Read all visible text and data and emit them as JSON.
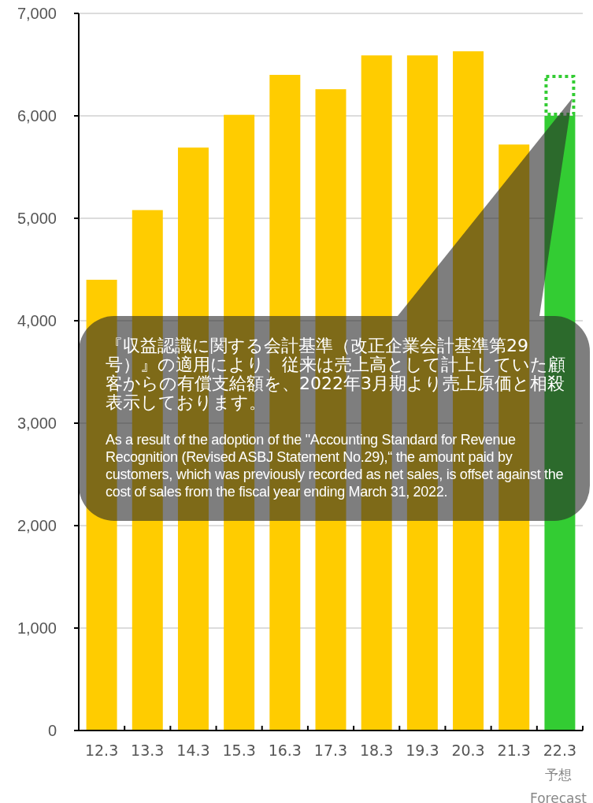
{
  "chart_data": {
    "type": "bar",
    "stacked": true,
    "grid": "y",
    "categories": [
      "12.3",
      "13.3",
      "14.3",
      "15.3",
      "16.3",
      "17.3",
      "18.3",
      "19.3",
      "20.3",
      "21.3",
      "22.3\n予想\nForecast"
    ],
    "ylim": [
      0,
      7000
    ],
    "yticks": [
      0,
      {
        "value": 1000,
        "label": "1,000"
      },
      {
        "value": 2000,
        "label": "2,000"
      },
      {
        "value": 3000,
        "label": "3,000"
      },
      {
        "value": 4000,
        "label": "4,000"
      },
      {
        "value": 5000,
        "label": "5,000"
      },
      {
        "value": 6000,
        "label": "6,000"
      },
      {
        "value": 7000,
        "label": "7,000"
      }
    ],
    "series": [
      {
        "colors": [
          "#ffcc00",
          "#ffcc00",
          "#ffcc00",
          "#ffcc00",
          "#ffcc00",
          "#ffcc00",
          "#ffcc00",
          "#ffcc00",
          "#ffcc00",
          "#ffcc00",
          "#33cc33"
        ],
        "values": [
          4400,
          5080,
          5690,
          6010,
          6400,
          6260,
          6590,
          6590,
          6630,
          5720,
          6000
        ]
      },
      {
        "color": "#33cc33",
        "line_style": "dotted",
        "values": [
          null,
          null,
          null,
          null,
          null,
          null,
          null,
          null,
          null,
          null,
          400
        ]
      }
    ],
    "annotations": [
      "『収益認識に関する会計基準（改正企業会計基準第29号）』の適用により、従来は売上高として計上していた顧客からの有償支給額を、2022年3月期より売上原価と相殺表示しております。",
      "As a result of the adoption of the \"Accounting Standard for Revenue Recognition (Revised ASBJ Statement No.29),“ the amount paid by customers, which was previously recorded as net sales, is offset against the cost of sales from the fiscal year ending March 31, 2022."
    ]
  }
}
